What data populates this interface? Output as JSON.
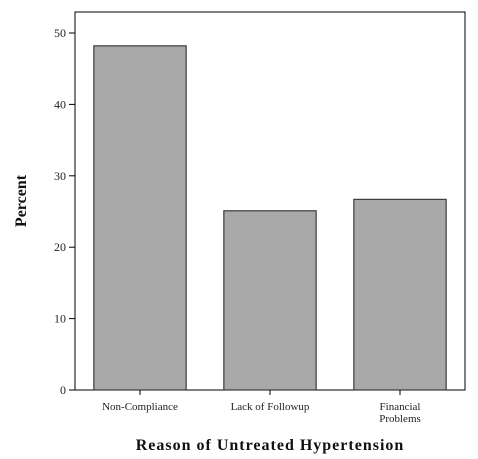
{
  "chart_data": {
    "type": "bar",
    "categories": [
      [
        "Non-Compliance"
      ],
      [
        "Lack of Followup"
      ],
      [
        "Financial",
        "Problems"
      ]
    ],
    "values": [
      48.2,
      25.1,
      26.7
    ],
    "title": "",
    "xlabel": "Reason of Untreated Hypertension",
    "ylabel": "Percent",
    "ylim": [
      0,
      50
    ],
    "yticks": [
      0,
      10,
      20,
      30,
      40,
      50
    ],
    "grid": false,
    "colors": {
      "bar_fill": "#a9a9a9",
      "bar_stroke": "#3a3a3a",
      "background": "#ffffff"
    }
  }
}
